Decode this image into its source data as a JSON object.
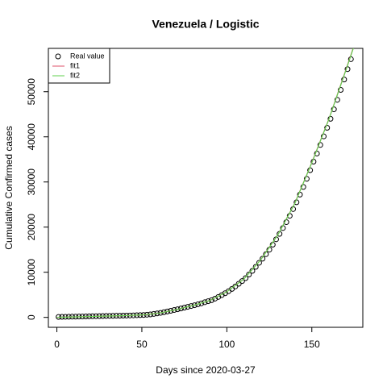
{
  "chart_data": {
    "type": "scatter",
    "title": "Venezuela / Logistic",
    "x_label": "Days since 2020-03-27",
    "y_label": "Cumulative Confirmed cases",
    "xlim": [
      -5,
      180
    ],
    "ylim": [
      -2200,
      59600
    ],
    "xticks": [
      0,
      50,
      100,
      150
    ],
    "yticks": [
      0,
      10000,
      20000,
      30000,
      40000,
      50000
    ],
    "legend": "topleft",
    "series": [
      {
        "name": "Real value",
        "color": "#000000",
        "kind": "points",
        "x": [
          1,
          3,
          5,
          7,
          9,
          11,
          13,
          15,
          17,
          19,
          21,
          23,
          25,
          27,
          29,
          31,
          33,
          35,
          37,
          39,
          41,
          43,
          45,
          47,
          49,
          51,
          53,
          55,
          57,
          59,
          61,
          63,
          65,
          67,
          69,
          71,
          73,
          75,
          77,
          79,
          81,
          83,
          85,
          87,
          89,
          91,
          93,
          95,
          97,
          99,
          101,
          103,
          105,
          107,
          109,
          111,
          113,
          115,
          117,
          119,
          121,
          123,
          125,
          127,
          129,
          131,
          133,
          135,
          137,
          139,
          141,
          143,
          145,
          147,
          149,
          151,
          153,
          155,
          157,
          159,
          161,
          163,
          165,
          167,
          169,
          171,
          173
        ],
        "values": [
          100,
          115,
          130,
          145,
          158,
          170,
          185,
          200,
          215,
          232,
          250,
          265,
          280,
          297,
          313,
          330,
          345,
          358,
          372,
          386,
          400,
          420,
          445,
          470,
          495,
          520,
          580,
          660,
          760,
          880,
          1000,
          1150,
          1300,
          1460,
          1630,
          1800,
          1980,
          2160,
          2340,
          2520,
          2700,
          2900,
          3100,
          3350,
          3580,
          3800,
          4150,
          4530,
          4930,
          5350,
          5800,
          6300,
          6850,
          7450,
          8050,
          8700,
          9500,
          10300,
          11200,
          12100,
          13000,
          14000,
          15000,
          16100,
          17300,
          18500,
          19800,
          21100,
          22500,
          24000,
          25500,
          27200,
          28900,
          30700,
          32600,
          34500,
          36300,
          38200,
          40100,
          42000,
          44000,
          46100,
          48200,
          50400,
          52700,
          55000,
          57200
        ]
      },
      {
        "name": "fit1",
        "color": "#DF536B",
        "kind": "line",
        "x": [
          0,
          10,
          20,
          30,
          40,
          50,
          60,
          70,
          80,
          90,
          100,
          110,
          120,
          130,
          140,
          150,
          160,
          170,
          180
        ],
        "values": [
          0,
          100,
          200,
          300,
          400,
          550,
          950,
          1700,
          2650,
          3750,
          5700,
          8500,
          12800,
          18300,
          25300,
          34300,
          43900,
          54800,
          66000
        ]
      },
      {
        "name": "fit2",
        "color": "#61D04F",
        "kind": "line",
        "x": [
          0,
          10,
          20,
          30,
          40,
          50,
          60,
          70,
          80,
          90,
          100,
          110,
          120,
          130,
          140,
          150,
          160,
          170,
          180
        ],
        "values": [
          0,
          100,
          200,
          300,
          400,
          540,
          940,
          1690,
          2640,
          3740,
          5680,
          8480,
          12770,
          18270,
          25250,
          34250,
          43850,
          54700,
          65800
        ]
      }
    ]
  }
}
